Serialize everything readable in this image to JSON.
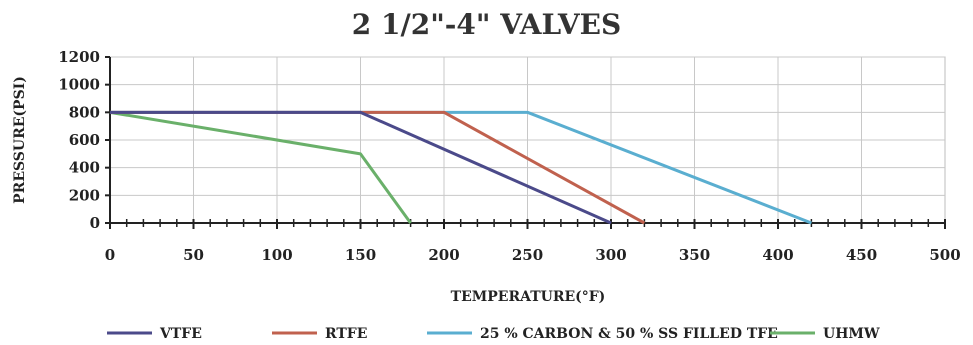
{
  "chart_data": {
    "type": "line",
    "title": "2 1/2\"-4\" VALVES",
    "xlabel": "TEMPERATURE(°F)",
    "ylabel": "PRESSURE(PSI)",
    "xlim": [
      0,
      500
    ],
    "ylim": [
      0,
      1200
    ],
    "xticks": [
      0,
      50,
      100,
      150,
      200,
      250,
      300,
      350,
      400,
      450,
      500
    ],
    "yticks": [
      0,
      200,
      400,
      600,
      800,
      1000,
      1200
    ],
    "grid": true,
    "legend_position": "bottom",
    "series": [
      {
        "name": "VTFE",
        "color": "#4b4a8a",
        "x": [
          0,
          150,
          300
        ],
        "y": [
          800,
          800,
          0
        ]
      },
      {
        "name": "RTFE",
        "color": "#c0614e",
        "x": [
          0,
          200,
          320
        ],
        "y": [
          800,
          800,
          0
        ]
      },
      {
        "name": "25 % CARBON & 50 % SS FILLED TFE",
        "color": "#5aaed0",
        "x": [
          0,
          250,
          420
        ],
        "y": [
          800,
          800,
          0
        ]
      },
      {
        "name": "UHMW",
        "color": "#6ab06a",
        "x": [
          0,
          150,
          180
        ],
        "y": [
          800,
          500,
          0
        ]
      }
    ]
  }
}
